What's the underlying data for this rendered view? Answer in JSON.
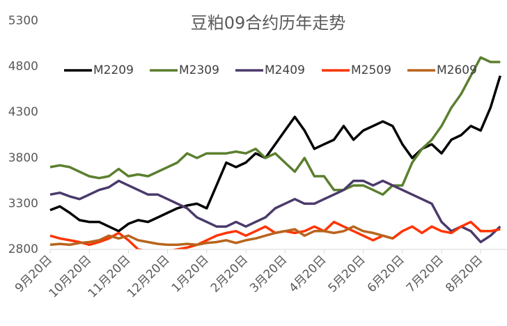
{
  "chart_data": {
    "type": "line",
    "title": "豆粕09合约历年走势",
    "categories": [
      "9月20日",
      null,
      null,
      null,
      "10月20日",
      null,
      null,
      null,
      "11月20日",
      null,
      null,
      null,
      "12月20日",
      null,
      null,
      null,
      "1月20日",
      null,
      null,
      null,
      "2月20日",
      null,
      null,
      null,
      "3月20日",
      null,
      null,
      null,
      "4月20日",
      null,
      null,
      null,
      "5月20日",
      null,
      null,
      null,
      "6月20日",
      null,
      null,
      null,
      "7月20日",
      null,
      null,
      null,
      "8月20日",
      null,
      null
    ],
    "series": [
      {
        "name": "M2209",
        "color": "#000000",
        "values": [
          3230,
          3270,
          3200,
          3120,
          3100,
          3100,
          3050,
          3000,
          3080,
          3120,
          3100,
          3150,
          3200,
          3250,
          3280,
          3300,
          3250,
          3500,
          3750,
          3700,
          3750,
          3850,
          3800,
          3950,
          4100,
          4250,
          4100,
          3900,
          3950,
          4000,
          4150,
          4000,
          4100,
          4150,
          4200,
          4150,
          3950,
          3800,
          3900,
          3950,
          3850,
          4000,
          4050,
          4150,
          4100,
          4350,
          4700
        ]
      },
      {
        "name": "M2309",
        "color": "#5b7f2f",
        "values": [
          3700,
          3720,
          3700,
          3650,
          3600,
          3580,
          3600,
          3680,
          3600,
          3620,
          3600,
          3650,
          3700,
          3750,
          3850,
          3800,
          3850,
          3850,
          3850,
          3870,
          3850,
          3900,
          3800,
          3850,
          3750,
          3650,
          3800,
          3600,
          3600,
          3450,
          3450,
          3500,
          3500,
          3450,
          3400,
          3500,
          3500,
          3750,
          3900,
          4000,
          4150,
          4350,
          4500,
          4700,
          4900,
          4850,
          4850
        ]
      },
      {
        "name": "M2409",
        "color": "#4b3a6b",
        "values": [
          3400,
          3420,
          3380,
          3350,
          3400,
          3450,
          3480,
          3550,
          3500,
          3450,
          3400,
          3400,
          3350,
          3300,
          3250,
          3150,
          3100,
          3050,
          3050,
          3100,
          3050,
          3100,
          3150,
          3250,
          3300,
          3350,
          3300,
          3300,
          3350,
          3400,
          3450,
          3550,
          3550,
          3500,
          3550,
          3500,
          3450,
          3400,
          3350,
          3300,
          3100,
          3000,
          3050,
          3000,
          2880,
          2950,
          3050
        ]
      },
      {
        "name": "M2509",
        "color": "#ff3300",
        "values": [
          2950,
          2920,
          2900,
          2880,
          2850,
          2880,
          2920,
          2980,
          2900,
          2800,
          2780,
          2750,
          2780,
          2800,
          2820,
          2850,
          2900,
          2950,
          2980,
          3000,
          2950,
          3000,
          3050,
          2980,
          3000,
          2980,
          3000,
          3050,
          3000,
          3100,
          3050,
          3000,
          2950,
          2900,
          2950,
          2920,
          3000,
          3050,
          2980,
          3050,
          3000,
          2980,
          3050,
          3100,
          3000,
          3000,
          3020
        ]
      },
      {
        "name": "M2609",
        "color": "#b8641c",
        "values": [
          2850,
          2860,
          2850,
          2870,
          2880,
          2900,
          2950,
          2920,
          2950,
          2900,
          2880,
          2860,
          2850,
          2850,
          2860,
          2850,
          2870,
          2880,
          2900,
          2870,
          2900,
          2920,
          2950,
          2980,
          3000,
          3020,
          2950,
          3000,
          3000,
          2980,
          3000,
          3050,
          3000,
          2980,
          2950,
          2920,
          null,
          null,
          null,
          null,
          null,
          null,
          null,
          null,
          null,
          null,
          null
        ]
      }
    ],
    "ylim": [
      2800,
      5300
    ],
    "yticks": [
      2800,
      3300,
      3800,
      4300,
      4800,
      5300
    ]
  }
}
